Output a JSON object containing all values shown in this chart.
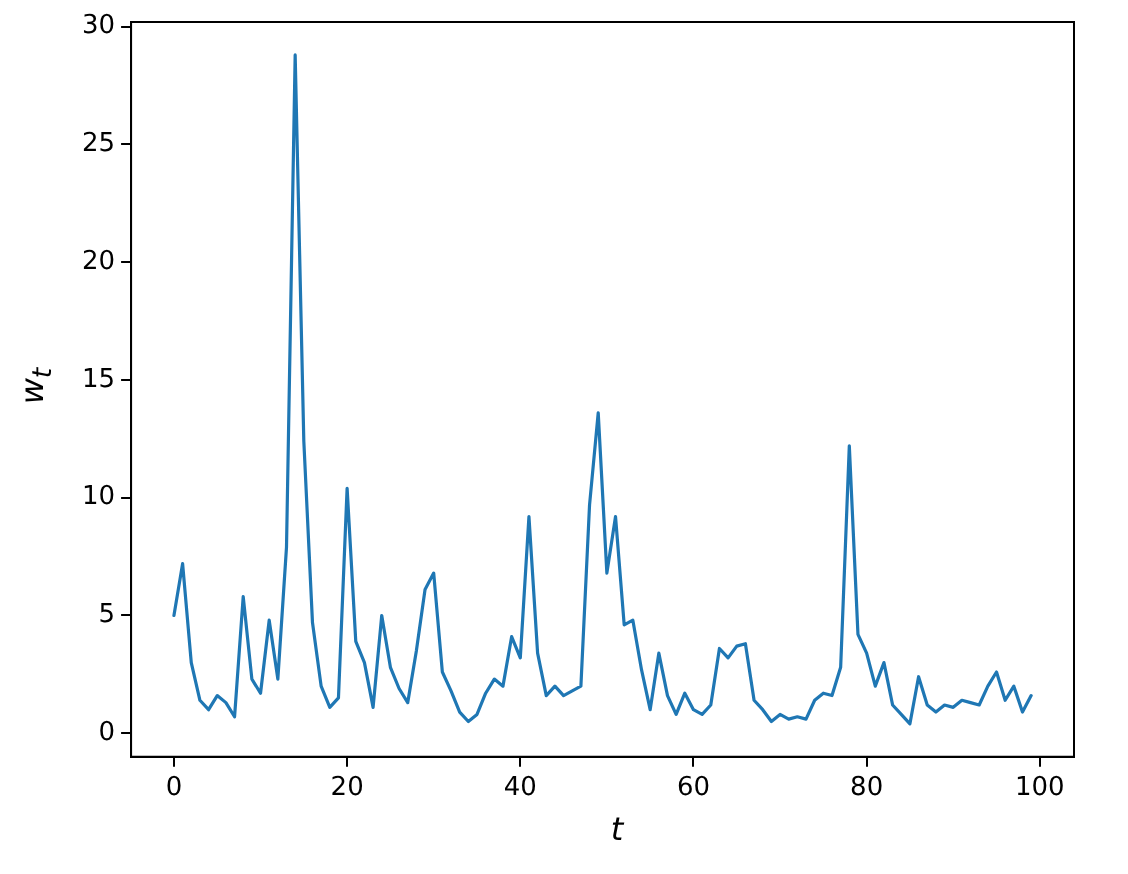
{
  "chart_data": {
    "type": "line",
    "xlabel": "t",
    "ylabel": "w$_{t}$",
    "x": [
      0,
      1,
      2,
      3,
      4,
      5,
      6,
      7,
      8,
      9,
      10,
      11,
      12,
      13,
      14,
      15,
      16,
      17,
      18,
      19,
      20,
      21,
      22,
      23,
      24,
      25,
      26,
      27,
      28,
      29,
      30,
      31,
      32,
      33,
      34,
      35,
      36,
      37,
      38,
      39,
      40,
      41,
      42,
      43,
      44,
      45,
      46,
      47,
      48,
      49,
      50,
      51,
      52,
      53,
      54,
      55,
      56,
      57,
      58,
      59,
      60,
      61,
      62,
      63,
      64,
      65,
      66,
      67,
      68,
      69,
      70,
      71,
      72,
      73,
      74,
      75,
      76,
      77,
      78,
      79,
      80,
      81,
      82,
      83,
      84,
      85,
      86,
      87,
      88,
      89,
      90,
      91,
      92,
      93,
      94,
      95,
      96,
      97,
      98,
      99
    ],
    "series": [
      {
        "color": "#1f77b4",
        "values": [
          5.0,
          7.2,
          3.0,
          1.4,
          1.0,
          1.6,
          1.3,
          0.7,
          5.8,
          2.3,
          1.7,
          4.8,
          2.3,
          7.9,
          28.8,
          12.4,
          4.7,
          2.0,
          1.1,
          1.5,
          10.4,
          3.9,
          3.0,
          1.1,
          5.0,
          2.8,
          1.9,
          1.3,
          3.5,
          6.1,
          6.8,
          2.6,
          1.8,
          0.9,
          0.5,
          0.8,
          1.7,
          2.3,
          2.0,
          4.1,
          3.2,
          9.2,
          3.4,
          1.6,
          2.0,
          1.6,
          1.8,
          2.0,
          9.7,
          13.6,
          6.8,
          9.2,
          4.6,
          4.8,
          2.7,
          1.0,
          3.4,
          1.6,
          0.8,
          1.7,
          1.0,
          0.8,
          1.2,
          3.6,
          3.2,
          3.7,
          3.8,
          1.4,
          1.0,
          0.5,
          0.8,
          0.6,
          0.7,
          0.6,
          1.4,
          1.7,
          1.6,
          2.8,
          12.2,
          4.2,
          3.4,
          2.0,
          3.0,
          1.2,
          0.8,
          0.4,
          2.4,
          1.2,
          0.9,
          1.2,
          1.1,
          1.4,
          1.3,
          1.2,
          2.0,
          2.6,
          1.4,
          2.0,
          0.9,
          1.6
        ]
      }
    ],
    "xlim": [
      -4.95,
      103.95
    ],
    "xticks": [
      0,
      20,
      40,
      60,
      80,
      100
    ],
    "ylim": [
      -1.0,
      30.2
    ],
    "yticks": [
      0,
      5,
      10,
      15,
      20,
      25,
      30
    ],
    "grid": false,
    "legend": false,
    "marker": "none",
    "line_style": "solid"
  }
}
